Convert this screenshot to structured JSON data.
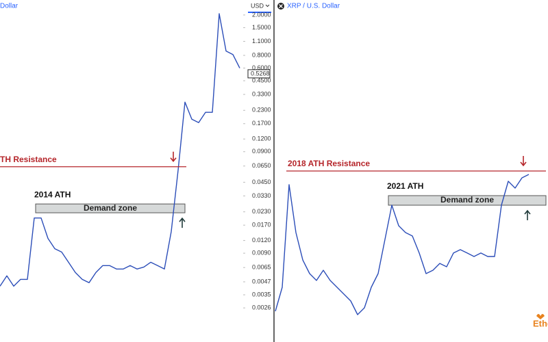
{
  "chart_data": [
    {
      "type": "line",
      "title": "Dollar",
      "currency": "USD",
      "log_scale": true,
      "color": "#2b4db8",
      "values": [
        0.00426,
        0.00538,
        0.00426,
        0.00497,
        0.00497,
        0.02,
        0.02,
        0.0126,
        0.00997,
        0.00924,
        0.00733,
        0.00581,
        0.00497,
        0.00461,
        0.00581,
        0.00679,
        0.00679,
        0.00628,
        0.00628,
        0.00679,
        0.00628,
        0.00657,
        0.00733,
        0.00679,
        0.00628,
        0.0147,
        0.059,
        0.277,
        0.188,
        0.174,
        0.22,
        0.22,
        2.06,
        0.883,
        0.816,
        0.599
      ],
      "ylim": [
        0.0012,
        2.81
      ],
      "yticks": [
        {
          "value": 2,
          "label": "2.0000"
        },
        {
          "value": 1.5,
          "label": "1.5000"
        },
        {
          "value": 1.1,
          "label": "1.1000"
        },
        {
          "value": 0.8,
          "label": "0.8000"
        },
        {
          "value": 0.6,
          "label": "0.6000"
        },
        {
          "value": 0.45,
          "label": "0.4500"
        },
        {
          "value": 0.33,
          "label": "0.3300"
        },
        {
          "value": 0.23,
          "label": "0.2300"
        },
        {
          "value": 0.17,
          "label": "0.1700"
        },
        {
          "value": 0.12,
          "label": "0.1200"
        },
        {
          "value": 0.09,
          "label": "0.0900"
        },
        {
          "value": 0.065,
          "label": "0.0650"
        },
        {
          "value": 0.045,
          "label": "0.0450"
        },
        {
          "value": 0.033,
          "label": "0.0330"
        },
        {
          "value": 0.023,
          "label": "0.0230"
        },
        {
          "value": 0.017,
          "label": "0.0170"
        },
        {
          "value": 0.012,
          "label": "0.0120"
        },
        {
          "value": 0.009,
          "label": "0.0090"
        },
        {
          "value": 0.0065,
          "label": "0.0065"
        },
        {
          "value": 0.0047,
          "label": "0.0047"
        },
        {
          "value": 0.0035,
          "label": "0.0035"
        },
        {
          "value": 0.0026,
          "label": "0.0026"
        }
      ],
      "last_price": 0.5268,
      "resistance": 0.064,
      "resistance_label": "TH Resistance",
      "resistance_color": "#b5252a",
      "ath_label": "2014 ATH",
      "demand_zone": [
        0.0225,
        0.0275
      ],
      "demand_label": "Demand zone"
    },
    {
      "type": "line",
      "title": "XRP / U.S. Dollar",
      "log_scale": true,
      "color": "#2b4db8",
      "values": [
        0.00282,
        0.00631,
        0.2,
        0.0398,
        0.0158,
        0.01,
        0.00794,
        0.0112,
        0.00794,
        0.00631,
        0.00501,
        0.00398,
        0.00251,
        0.00316,
        0.00631,
        0.01,
        0.0316,
        0.1,
        0.0501,
        0.0398,
        0.0355,
        0.02,
        0.01,
        0.0112,
        0.0141,
        0.0126,
        0.02,
        0.0224,
        0.02,
        0.0178,
        0.02,
        0.0178,
        0.0178,
        0.1,
        0.224,
        0.178,
        0.251,
        0.282
      ],
      "ylim": [
        0.001,
        100
      ],
      "resistance": 0.316,
      "resistance_label": "2018 ATH Resistance",
      "resistance_color": "#b5252a",
      "ath_label": "2021 ATH",
      "demand_zone": [
        0.1,
        0.138
      ],
      "demand_label": "Demand zone"
    }
  ],
  "watermark": "Ethe"
}
